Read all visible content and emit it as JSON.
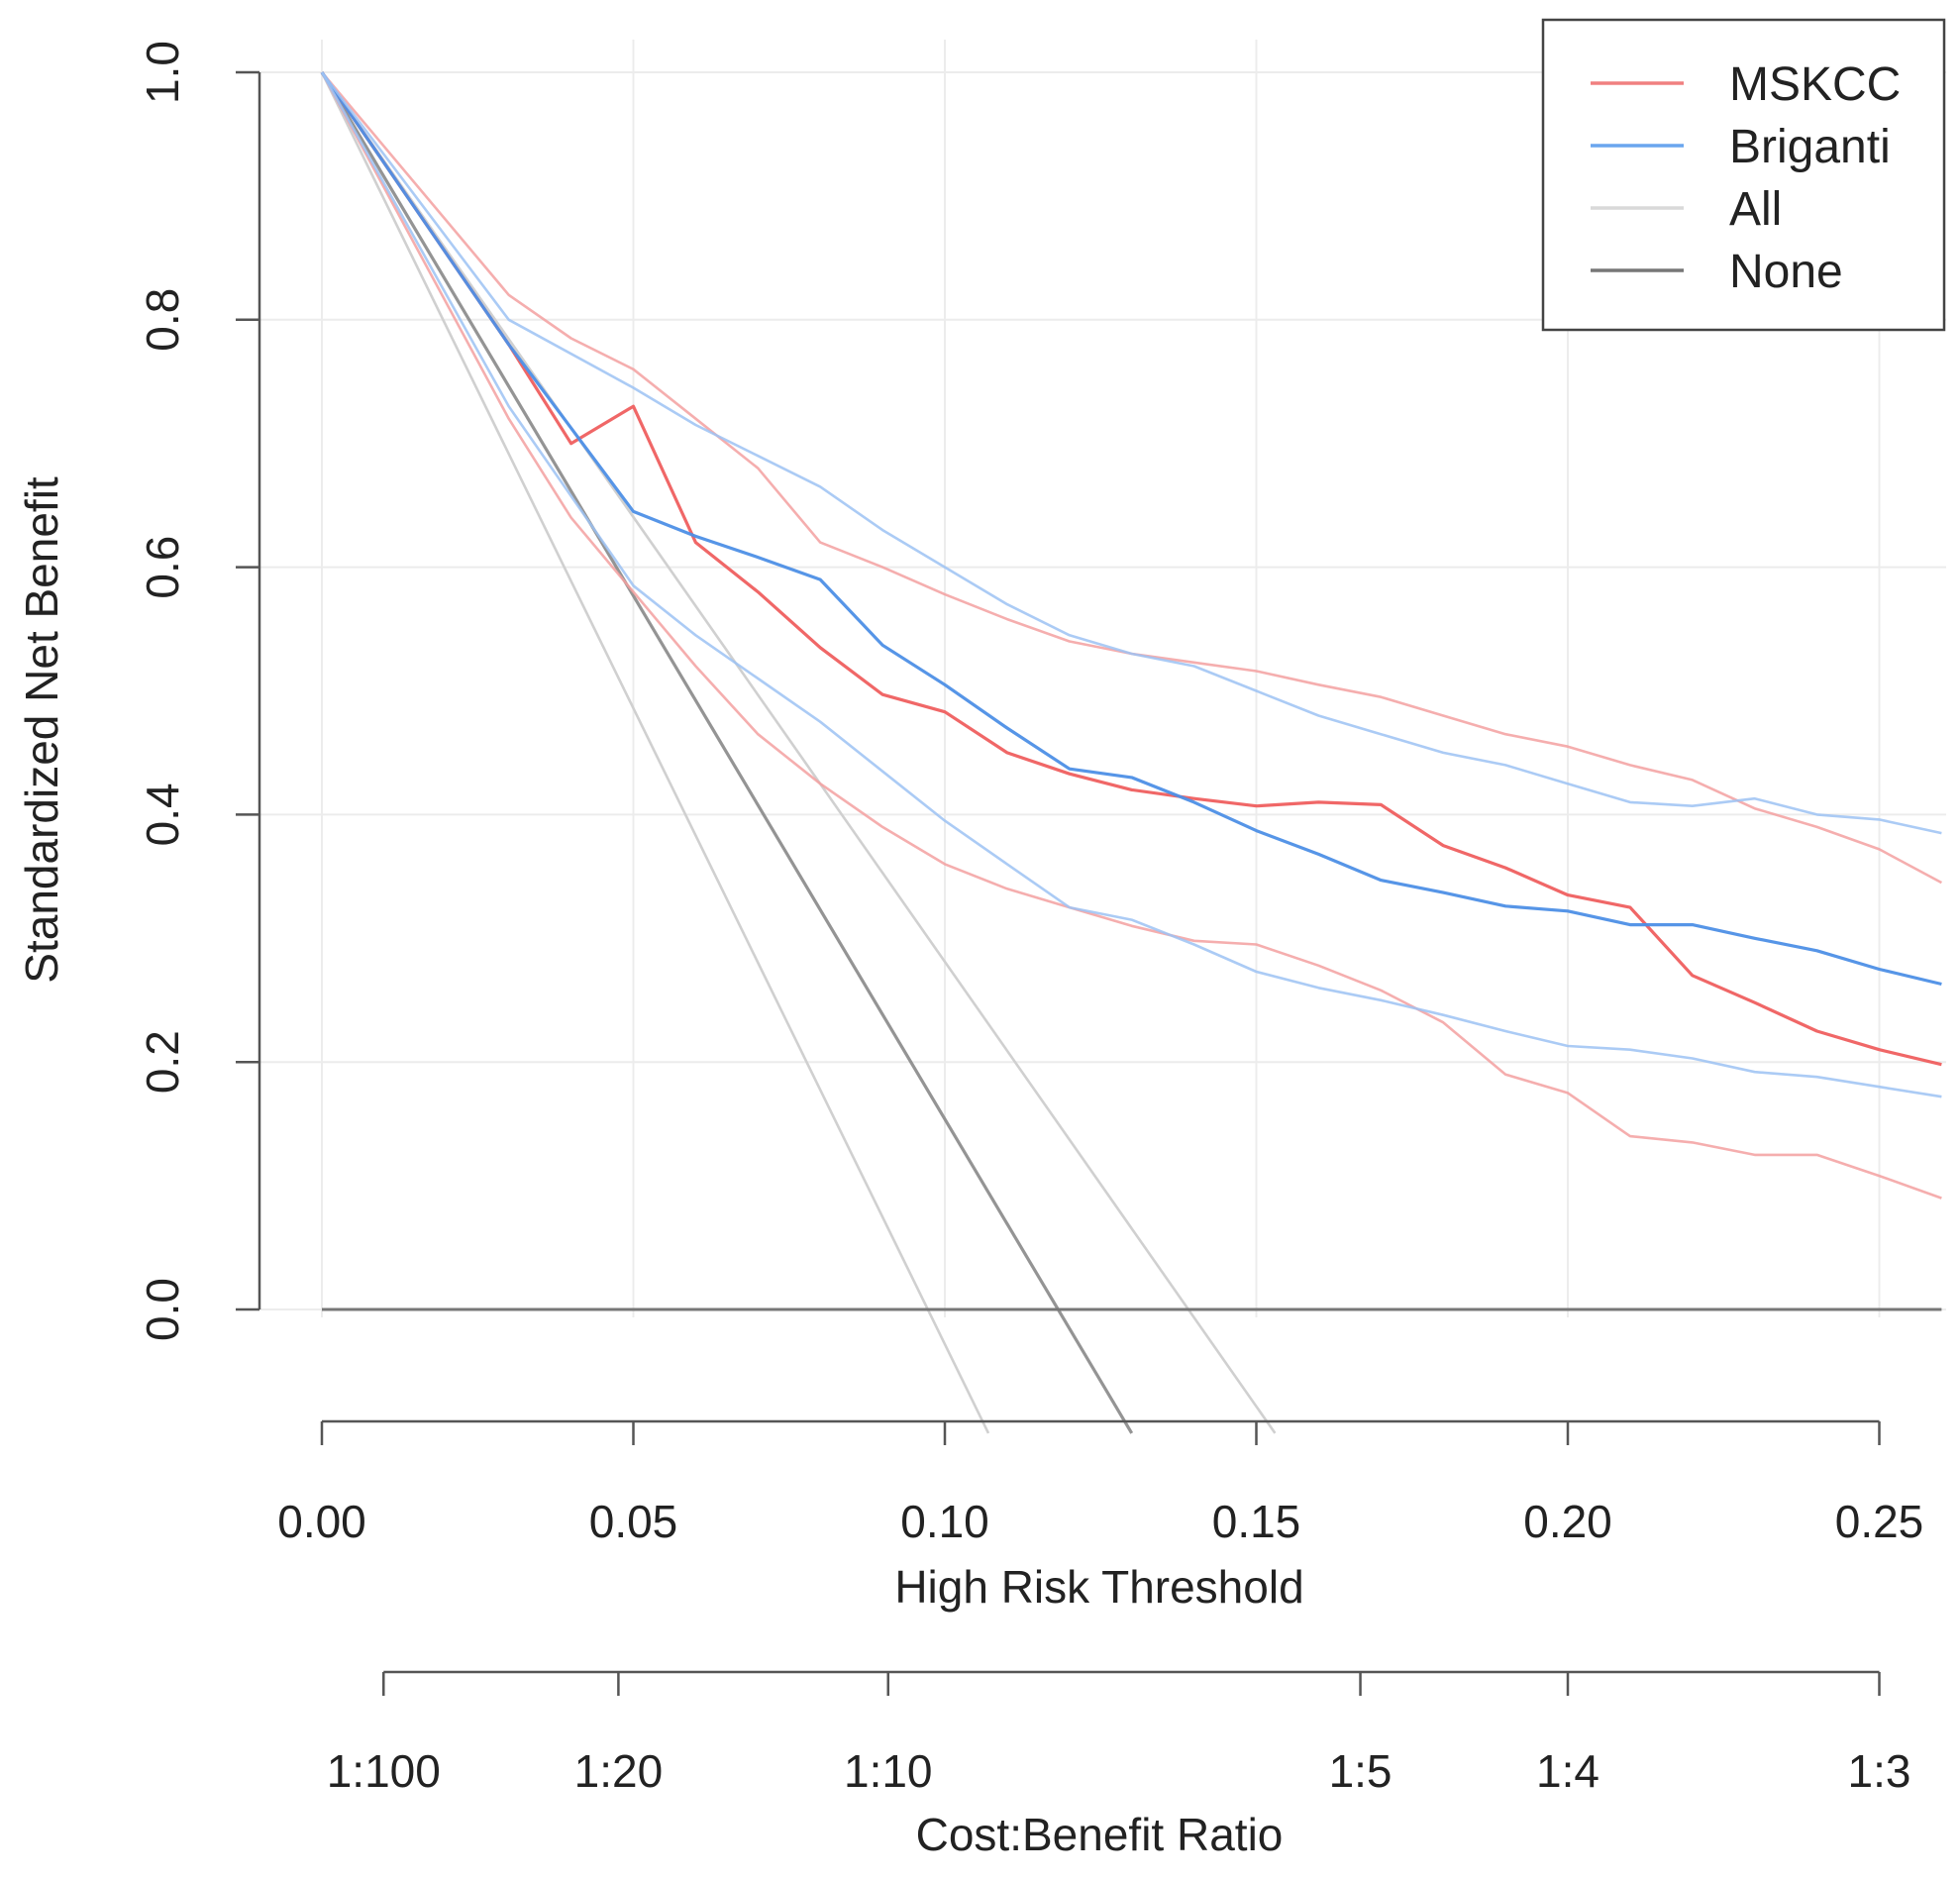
{
  "chart_data": {
    "type": "line",
    "xlabel": "High Risk Threshold",
    "ylabel": "Standardized Net Benefit",
    "secondary_xlabel": "Cost:Benefit Ratio",
    "xlim": [
      -0.01,
      0.26
    ],
    "ylim": [
      -0.1,
      1.0
    ],
    "x_ticks": [
      "0.00",
      "0.05",
      "0.10",
      "0.15",
      "0.20",
      "0.25"
    ],
    "y_ticks": [
      "0.0",
      "0.2",
      "0.4",
      "0.6",
      "0.8",
      "1.0"
    ],
    "ratio_ticks": [
      {
        "label": "1:100",
        "x": 0.0099
      },
      {
        "label": "1:20",
        "x": 0.0476
      },
      {
        "label": "1:10",
        "x": 0.0909
      },
      {
        "label": "1:5",
        "x": 0.1667
      },
      {
        "label": "1:4",
        "x": 0.2
      },
      {
        "label": "1:3",
        "x": 0.25
      }
    ],
    "grid": true,
    "legend_position": "top-right",
    "legend": [
      {
        "label": "MSKCC",
        "color": "#f08080"
      },
      {
        "label": "Briganti",
        "color": "#6aa6ee"
      },
      {
        "label": "All",
        "color": "#d9d9d9"
      },
      {
        "label": "None",
        "color": "#777777"
      }
    ],
    "series": [
      {
        "name": "MSKCC",
        "role": "estimate",
        "color": "#ef5f5f",
        "opacity": 0.95,
        "x": [
          0,
          0.03,
          0.04,
          0.05,
          0.06,
          0.07,
          0.08,
          0.09,
          0.1,
          0.11,
          0.12,
          0.13,
          0.14,
          0.15,
          0.16,
          0.17,
          0.18,
          0.19,
          0.2,
          0.21,
          0.22,
          0.23,
          0.24,
          0.25,
          0.26
        ],
        "y": [
          1.0,
          0.78,
          0.7,
          0.73,
          0.62,
          0.58,
          0.535,
          0.497,
          0.483,
          0.45,
          0.433,
          0.42,
          0.413,
          0.407,
          0.41,
          0.408,
          0.375,
          0.357,
          0.335,
          0.325,
          0.27,
          0.248,
          0.225,
          0.21,
          0.198
        ]
      },
      {
        "name": "MSKCC",
        "role": "upper",
        "color": "#f3a0a0",
        "opacity": 0.85,
        "x": [
          0,
          0.03,
          0.04,
          0.05,
          0.06,
          0.07,
          0.08,
          0.09,
          0.1,
          0.11,
          0.12,
          0.13,
          0.14,
          0.15,
          0.16,
          0.17,
          0.18,
          0.19,
          0.2,
          0.21,
          0.22,
          0.23,
          0.24,
          0.25,
          0.26
        ],
        "y": [
          1.0,
          0.82,
          0.785,
          0.76,
          0.72,
          0.68,
          0.62,
          0.6,
          0.578,
          0.558,
          0.54,
          0.53,
          0.523,
          0.516,
          0.505,
          0.495,
          0.48,
          0.465,
          0.455,
          0.44,
          0.428,
          0.405,
          0.39,
          0.372,
          0.345
        ]
      },
      {
        "name": "MSKCC",
        "role": "lower",
        "color": "#f3a0a0",
        "opacity": 0.85,
        "x": [
          0,
          0.03,
          0.04,
          0.05,
          0.06,
          0.07,
          0.08,
          0.09,
          0.1,
          0.11,
          0.12,
          0.13,
          0.14,
          0.15,
          0.16,
          0.17,
          0.18,
          0.19,
          0.2,
          0.21,
          0.22,
          0.23,
          0.24,
          0.25,
          0.26
        ],
        "y": [
          1.0,
          0.72,
          0.64,
          0.58,
          0.52,
          0.465,
          0.425,
          0.39,
          0.36,
          0.34,
          0.325,
          0.31,
          0.298,
          0.295,
          0.278,
          0.258,
          0.232,
          0.19,
          0.175,
          0.14,
          0.135,
          0.125,
          0.125,
          0.108,
          0.09
        ]
      },
      {
        "name": "Briganti",
        "role": "estimate",
        "color": "#4d8fe6",
        "opacity": 0.95,
        "x": [
          0,
          0.03,
          0.05,
          0.06,
          0.07,
          0.08,
          0.09,
          0.1,
          0.11,
          0.12,
          0.13,
          0.14,
          0.15,
          0.16,
          0.17,
          0.18,
          0.19,
          0.2,
          0.21,
          0.22,
          0.23,
          0.24,
          0.25,
          0.26
        ],
        "y": [
          1.0,
          0.78,
          0.645,
          0.625,
          0.608,
          0.59,
          0.537,
          0.505,
          0.47,
          0.437,
          0.43,
          0.41,
          0.387,
          0.368,
          0.347,
          0.337,
          0.326,
          0.322,
          0.311,
          0.311,
          0.3,
          0.29,
          0.275,
          0.263
        ]
      },
      {
        "name": "Briganti",
        "role": "upper",
        "color": "#9cc2f3",
        "opacity": 0.85,
        "x": [
          0,
          0.03,
          0.05,
          0.06,
          0.07,
          0.08,
          0.09,
          0.1,
          0.11,
          0.12,
          0.13,
          0.14,
          0.15,
          0.16,
          0.17,
          0.18,
          0.19,
          0.2,
          0.21,
          0.22,
          0.23,
          0.24,
          0.25,
          0.26
        ],
        "y": [
          1.0,
          0.8,
          0.745,
          0.715,
          0.69,
          0.665,
          0.63,
          0.6,
          0.57,
          0.545,
          0.53,
          0.52,
          0.5,
          0.48,
          0.465,
          0.45,
          0.44,
          0.425,
          0.41,
          0.407,
          0.413,
          0.4,
          0.396,
          0.385
        ]
      },
      {
        "name": "Briganti",
        "role": "lower",
        "color": "#9cc2f3",
        "opacity": 0.85,
        "x": [
          0,
          0.03,
          0.05,
          0.06,
          0.07,
          0.08,
          0.09,
          0.1,
          0.11,
          0.12,
          0.13,
          0.14,
          0.15,
          0.16,
          0.17,
          0.18,
          0.19,
          0.2,
          0.21,
          0.22,
          0.23,
          0.24,
          0.25,
          0.26
        ],
        "y": [
          1.0,
          0.73,
          0.585,
          0.545,
          0.51,
          0.475,
          0.435,
          0.395,
          0.36,
          0.325,
          0.315,
          0.295,
          0.273,
          0.26,
          0.25,
          0.238,
          0.225,
          0.213,
          0.21,
          0.203,
          0.192,
          0.188,
          0.18,
          0.172
        ]
      },
      {
        "name": "All",
        "role": "estimate",
        "color": "#888888",
        "opacity": 0.9,
        "x": [
          0,
          0.13
        ],
        "y": [
          1.0,
          -0.1
        ]
      },
      {
        "name": "All",
        "role": "upper",
        "color": "#d0d0d0",
        "opacity": 1.0,
        "x": [
          0,
          0.153
        ],
        "y": [
          1.0,
          -0.1
        ]
      },
      {
        "name": "All",
        "role": "lower",
        "color": "#d0d0d0",
        "opacity": 1.0,
        "x": [
          0,
          0.107
        ],
        "y": [
          1.0,
          -0.1
        ]
      },
      {
        "name": "None",
        "role": "reference",
        "color": "#777777",
        "opacity": 1.0,
        "x": [
          0,
          0.26
        ],
        "y": [
          0,
          0
        ]
      }
    ]
  }
}
